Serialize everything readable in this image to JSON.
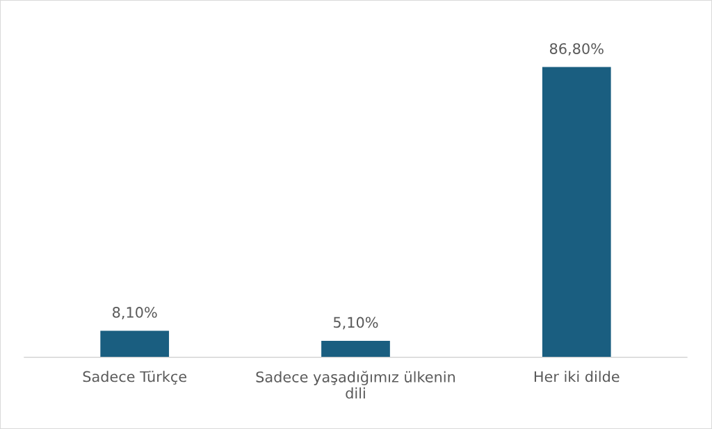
{
  "chart_data": {
    "type": "bar",
    "categories": [
      "Sadece Türkçe",
      "Sadece yaşadığımız ülkenin dili",
      "Her iki dilde"
    ],
    "values": [
      8.1,
      5.1,
      86.8
    ],
    "value_labels": [
      "8,10%",
      "5,10%",
      "86,80%"
    ],
    "color": "#1a5e80",
    "grid": false,
    "legend": false
  }
}
